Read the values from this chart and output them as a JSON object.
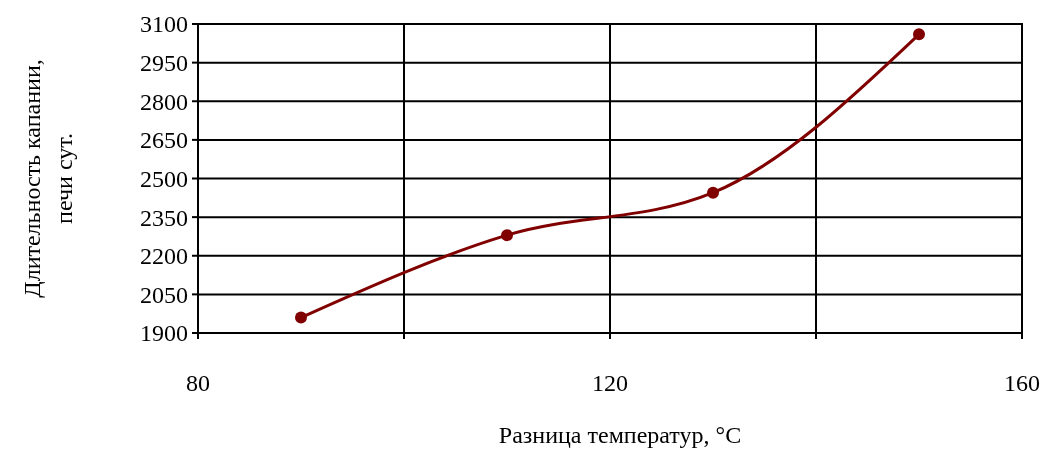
{
  "chart_data": {
    "type": "line",
    "xlabel": "Разница температур, °C",
    "ylabel": "Длительность капании,\nпечи сут.",
    "x": [
      90,
      110,
      130,
      150
    ],
    "series": [
      {
        "color": "#800000",
        "values": [
          1960,
          2280,
          2445,
          3060
        ]
      }
    ],
    "xlim": [
      80,
      160
    ],
    "xticks": [
      80,
      {
        "value": 100,
        "label": null
      },
      120,
      {
        "value": 140,
        "label": null
      },
      160
    ],
    "ylim": [
      1900,
      3100
    ],
    "yticks": [
      1900,
      2050,
      2200,
      2350,
      2500,
      2650,
      2800,
      2950,
      3100
    ],
    "grid": true,
    "marker": "circle",
    "line_style": "solid"
  }
}
